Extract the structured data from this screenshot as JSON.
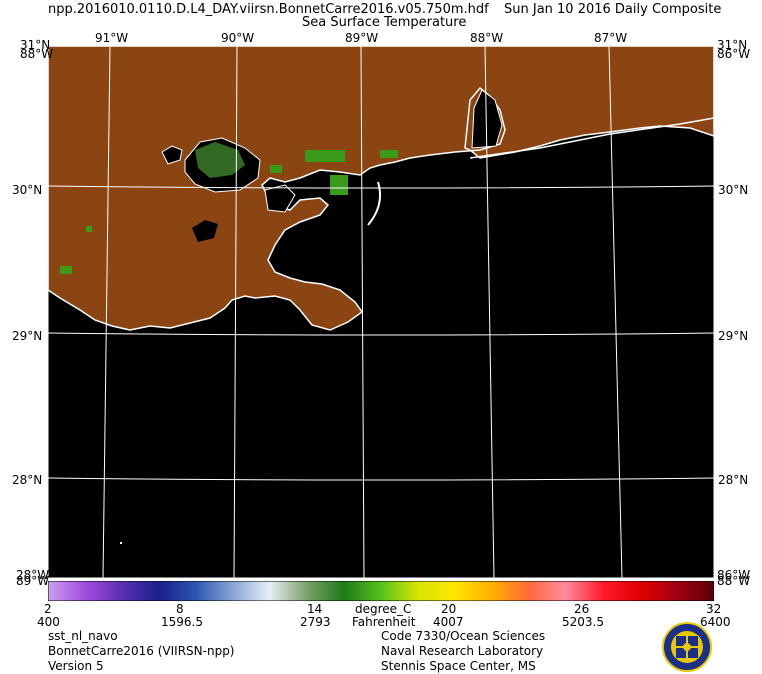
{
  "header": {
    "file_name": "npp.2016010.0110.D.L4_DAY.viirsn.BonnetCarre2016.v05.750m.hdf",
    "composite": "Sun Jan 10 2016 Daily Composite",
    "product": "Sea Surface Temperature"
  },
  "map": {
    "lon_labels": [
      "91°W",
      "90°W",
      "89°W",
      "88°W",
      "87°W"
    ],
    "lat_labels": [
      "31°N",
      "30°N",
      "29°N",
      "28°N"
    ],
    "corner_top_left": "31°N",
    "corner_top_left_sub": "88°W",
    "corner_top_right": "31°N",
    "corner_top_right_sub": "86°W",
    "corner_bottom_left": "28°W",
    "corner_bottom_left_sub": "89°W",
    "corner_bottom_right": "86°W",
    "corner_bottom_right_sub": "88°W",
    "colors": {
      "land": "#8B4513",
      "ocean": "#000000",
      "coast": "#ffffff",
      "grid": "#ffffff",
      "vegetation": "#3a7a2a"
    }
  },
  "colorbar": {
    "celsius_ticks": [
      "2",
      "8",
      "14",
      "20",
      "26",
      "32"
    ],
    "fahrenheit_ticks": [
      "400",
      "1596.5",
      "2793",
      "4007",
      "5203.5",
      "6400"
    ],
    "unit_c": "degree_C",
    "unit_f": "Fahrenheit",
    "colors": [
      "#c9a0f0",
      "#a24de0",
      "#5a2fb0",
      "#1a1f8a",
      "#2d56b0",
      "#8aa6d4",
      "#e8eef6",
      "#7aa06a",
      "#1f7a1a",
      "#55c21a",
      "#d8e600",
      "#ffe600",
      "#ffb000",
      "#ff6a3a",
      "#ff8aa0",
      "#ff1a2a",
      "#e00000",
      "#a00010",
      "#5a0008"
    ]
  },
  "footer": {
    "left": [
      "sst_nl_navo",
      "BonnetCarre2016 (VIIRSN-npp)",
      "Version 5"
    ],
    "right": [
      "Code 7330/Ocean Sciences",
      "Naval Research Laboratory",
      "Stennis Space Center, MS"
    ],
    "logo": "nrl-seal"
  }
}
